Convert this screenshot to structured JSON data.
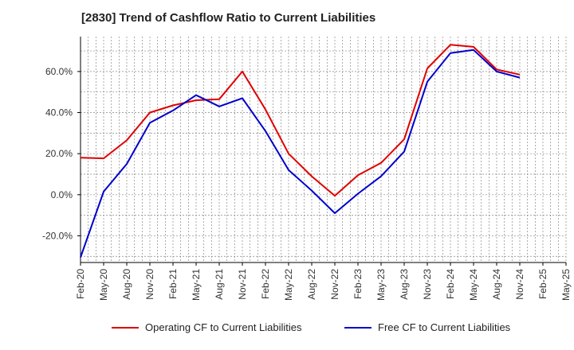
{
  "title": "[2830]  Trend of Cashflow Ratio to Current Liabilities",
  "colors": {
    "operating": "#e00000",
    "free": "#0000cc",
    "grid": "#888888",
    "axis": "#000000"
  },
  "chart_data": {
    "type": "line",
    "title": "[2830]  Trend of Cashflow Ratio to Current Liabilities",
    "xlabel": "",
    "ylabel": "",
    "x_ticks": [
      "Feb-20",
      "May-20",
      "Aug-20",
      "Nov-20",
      "Feb-21",
      "May-21",
      "Aug-21",
      "Nov-21",
      "Feb-22",
      "May-22",
      "Aug-22",
      "Nov-22",
      "Feb-23",
      "May-23",
      "Aug-23",
      "Nov-23",
      "Feb-24",
      "May-24",
      "Aug-24",
      "Nov-24",
      "Feb-25",
      "May-25"
    ],
    "y_ticks": [
      "-20.0%",
      "0.0%",
      "20.0%",
      "40.0%",
      "60.0%"
    ],
    "y_tick_values": [
      -20,
      0,
      20,
      40,
      60
    ],
    "ylim": [
      -33,
      77
    ],
    "x_count": 22,
    "grid": true,
    "legend_position": "bottom",
    "series": [
      {
        "name": "Operating CF to Current Liabilities",
        "color": "#e00000",
        "x": [
          "Feb-20",
          "May-20",
          "Aug-20",
          "Nov-20",
          "Feb-21",
          "May-21",
          "Aug-21",
          "Nov-21",
          "Feb-22",
          "May-22",
          "Aug-22",
          "Nov-22",
          "Feb-23",
          "May-23",
          "Aug-23",
          "Nov-23",
          "Feb-24",
          "May-24",
          "Aug-24",
          "Nov-24"
        ],
        "values": [
          18.0,
          17.7,
          26.5,
          40.0,
          43.5,
          46.0,
          46.5,
          60.0,
          41.5,
          20.0,
          9.0,
          -0.5,
          9.5,
          15.5,
          27.0,
          61.5,
          73.0,
          72.0,
          61.0,
          58.5
        ]
      },
      {
        "name": "Free CF to Current Liabilities",
        "color": "#0000cc",
        "x": [
          "Feb-20",
          "May-20",
          "Aug-20",
          "Nov-20",
          "Feb-21",
          "May-21",
          "Aug-21",
          "Nov-21",
          "Feb-22",
          "May-22",
          "Aug-22",
          "Nov-22",
          "Feb-23",
          "May-23",
          "Aug-23",
          "Nov-23",
          "Feb-24",
          "May-24",
          "Aug-24",
          "Nov-24"
        ],
        "values": [
          -30.5,
          1.5,
          15.0,
          35.0,
          41.0,
          48.5,
          43.0,
          47.0,
          31.0,
          12.0,
          2.0,
          -9.0,
          0.5,
          9.0,
          21.0,
          55.0,
          69.0,
          70.5,
          60.0,
          57.0
        ]
      }
    ]
  }
}
